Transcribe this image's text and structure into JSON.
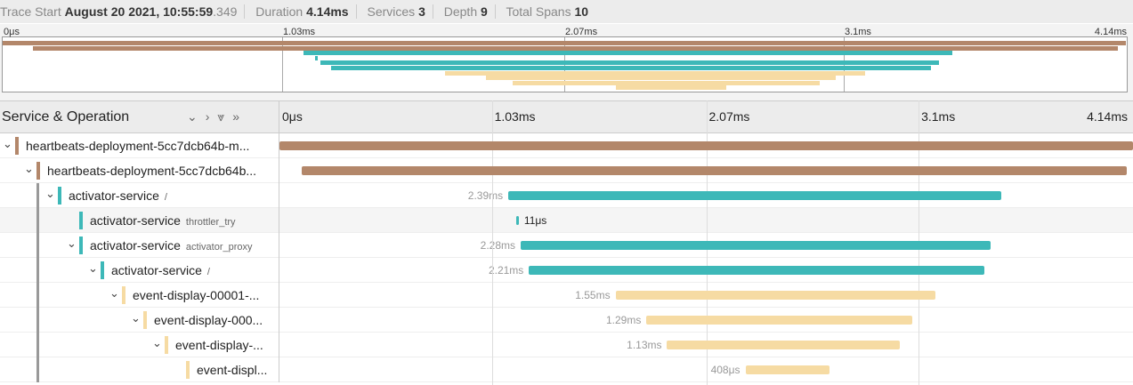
{
  "header": {
    "trace_start_label": "Trace Start",
    "trace_start": "August 20 2021, 10:55:59",
    "trace_start_ms": ".349",
    "duration_label": "Duration",
    "duration": "4.14ms",
    "services_label": "Services",
    "services": 3,
    "depth_label": "Depth",
    "depth": 9,
    "total_spans_label": "Total Spans",
    "total_spans": 10
  },
  "timeline": {
    "range": [
      0,
      4.14
    ],
    "ticks": [
      {
        "value": 0,
        "label": "0μs"
      },
      {
        "value": 1.03,
        "label": "1.03ms"
      },
      {
        "value": 2.07,
        "label": "2.07ms"
      },
      {
        "value": 3.1,
        "label": "3.1ms"
      },
      {
        "value": 4.14,
        "label": "4.14ms"
      }
    ]
  },
  "service_title": "Service & Operation",
  "spans": [
    {
      "service": "heartbeats-deployment-5cc7dcb64b-m...",
      "depth": 0,
      "start": 0,
      "duration": 4.14,
      "color": "#b3876a"
    },
    {
      "service": "heartbeats-deployment-5cc7dcb64b...",
      "depth": 1,
      "start": 0.11,
      "duration": 4.0,
      "color": "#b3876a"
    },
    {
      "service": "activator-service",
      "operation": "/",
      "depth": 2,
      "start": 1.11,
      "duration": 2.39,
      "duration_label": "2.39ms",
      "color": "#3db8b8"
    },
    {
      "service": "activator-service",
      "operation": "throttler_try",
      "depth": 3,
      "leaf": true,
      "start": 1.15,
      "duration": 0.011,
      "duration_label": "11μs",
      "color": "#3db8b8"
    },
    {
      "service": "activator-service",
      "operation": "activator_proxy",
      "depth": 3,
      "start": 1.17,
      "duration": 2.28,
      "duration_label": "2.28ms",
      "color": "#3db8b8"
    },
    {
      "service": "activator-service",
      "operation": "/",
      "depth": 4,
      "start": 1.21,
      "duration": 2.21,
      "duration_label": "2.21ms",
      "color": "#3db8b8"
    },
    {
      "service": "event-display-00001-...",
      "depth": 5,
      "start": 1.63,
      "duration": 1.55,
      "duration_label": "1.55ms",
      "color": "#f6dba3"
    },
    {
      "service": "event-display-000...",
      "depth": 6,
      "start": 1.78,
      "duration": 1.29,
      "duration_label": "1.29ms",
      "color": "#f6dba3"
    },
    {
      "service": "event-display-...",
      "depth": 7,
      "start": 1.88,
      "duration": 1.13,
      "duration_label": "1.13ms",
      "color": "#f6dba3"
    },
    {
      "service": "event-displ...",
      "depth": 8,
      "leaf": true,
      "start": 2.26,
      "duration": 0.408,
      "duration_label": "408μs",
      "color": "#f6dba3"
    }
  ]
}
